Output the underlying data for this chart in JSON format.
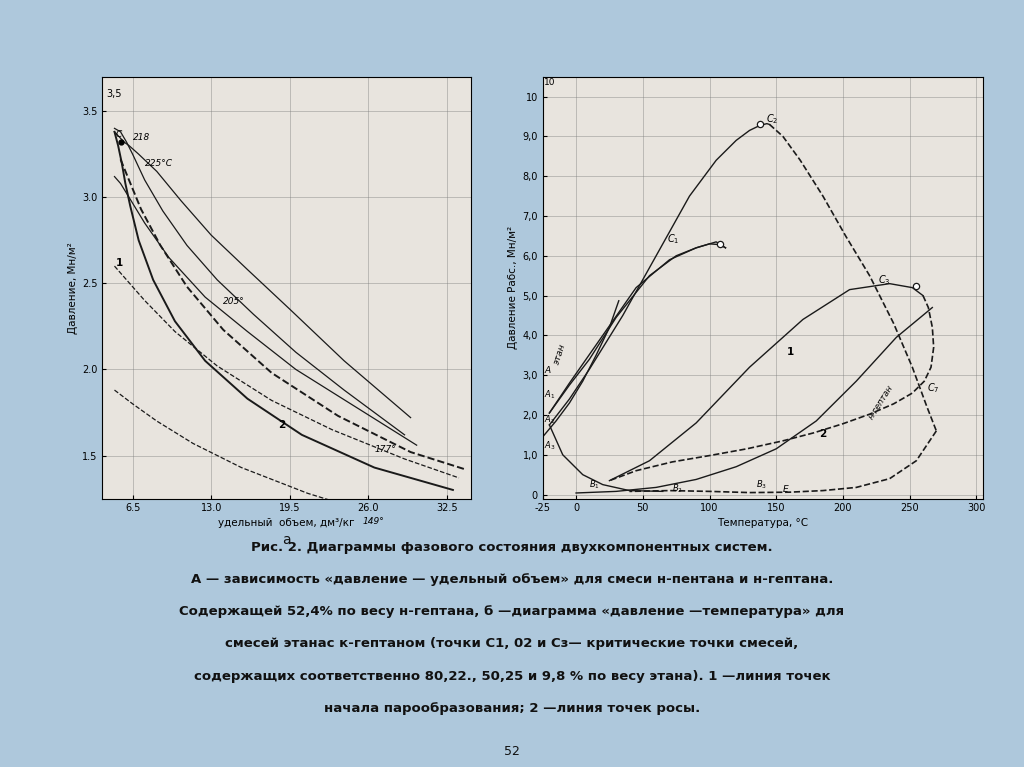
{
  "background_color": "#aec8dc",
  "chart_bg": "#e8e4de",
  "text_color": "#111111",
  "left_chart": {
    "xlim": [
      4.0,
      34.5
    ],
    "ylim": [
      1.25,
      3.7
    ],
    "xticks": [
      6.5,
      13.0,
      19.5,
      26.0,
      32.5
    ],
    "yticks": [
      1.5,
      2.0,
      2.5,
      3.0,
      3.5
    ],
    "xlabel": "удельный  объем, дм³/кг",
    "ylabel": "Давление, Мн/м²"
  },
  "right_chart": {
    "xlim": [
      -25,
      305
    ],
    "ylim": [
      -0.1,
      10.5
    ],
    "xticks": [
      -25,
      0,
      50,
      100,
      150,
      200,
      250,
      300
    ],
    "yticks": [
      0,
      1.0,
      2.0,
      3.0,
      4.0,
      5.0,
      6.0,
      7.0,
      8.0,
      9.0,
      10.0
    ],
    "ytick_labels": [
      "0",
      "1,0",
      "2,0",
      "3,0",
      "4,0",
      "5,0",
      "6,0",
      "7,0",
      "8,0",
      "9,0",
      "10"
    ],
    "xlabel": "Температура, °C",
    "ylabel": "Давление Рабс., Мн/м²"
  },
  "caption_lines": [
    "Рис. 2. Диаграммы фазового состояния двухкомпонентных систем.",
    "А — зависимость «давление — удельный объем» для смеси н-пентана и н-гептана.",
    "Содержащей 52,4% по весу н-гептана, б —диаграмма «давление —температура» для",
    "смесей этанас к-гептаном (точки С1, 02 и Сз— критические точки смесей,",
    "содержащих соответственно 80,22., 50,25 и 9,8 % по весу этана). 1 —линия точек",
    "начала парообразования; 2 —линия точек росы."
  ],
  "page_number": "52"
}
